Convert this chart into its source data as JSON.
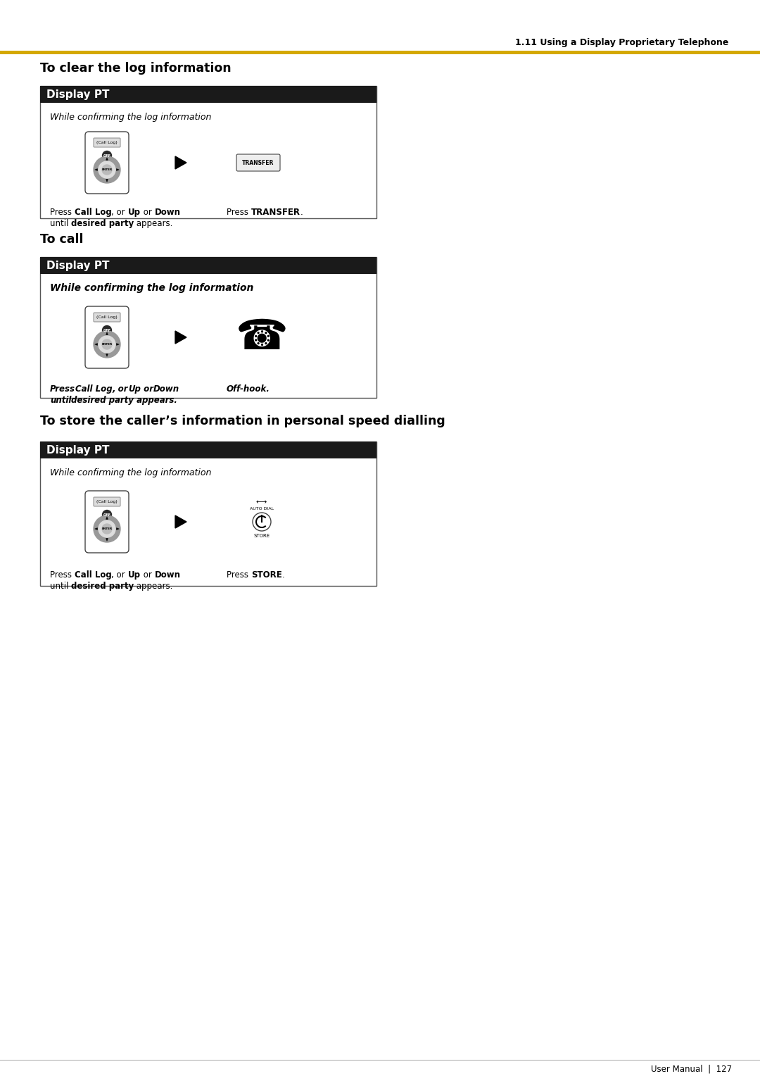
{
  "page_header": "1.11 Using a Display Proprietary Telephone",
  "header_line_color": "#D4A800",
  "background_color": "#FFFFFF",
  "page_number": "User Manual  |  127",
  "box_header_text": "Display PT",
  "box_header_bg": "#1A1A1A",
  "box_header_fg": "#FFFFFF",
  "section1_title": "To clear the log information",
  "section1_italic": "While confirming the log information",
  "section1_italic_bold": false,
  "section1_left_cap1_normal1": "Press ",
  "section1_left_cap1_bold1": "Call Log",
  "section1_left_cap1_normal2": ", or ",
  "section1_left_cap1_bold2": "Up",
  "section1_left_cap1_normal3": " or ",
  "section1_left_cap1_bold3": "Down",
  "section1_left_cap2_normal1": "until ",
  "section1_left_cap2_bold1": "desired party",
  "section1_left_cap2_normal2": " appears.",
  "section1_right_cap_normal1": "Press ",
  "section1_right_cap_bold1": "TRANSFER",
  "section1_right_cap_normal2": ".",
  "section1_right_icon": "TRANSFER",
  "section2_title": "To call",
  "section2_italic": "While confirming the log information",
  "section2_italic_bold": true,
  "section2_left_cap1_normal1": "Press",
  "section2_left_cap1_bold1": "Call Log",
  "section2_left_cap1_normal2": ", or",
  "section2_left_cap1_bold2": "Up",
  "section2_left_cap1_normal3": " or",
  "section2_left_cap1_bold3": "Down",
  "section2_left_cap2_normal1": "until",
  "section2_left_cap2_bold1": "desired party",
  "section2_left_cap2_normal2": " appears.",
  "section2_right_cap_bold1": "Off-hook.",
  "section2_right_icon": "PHONE",
  "section3_title": "To store the caller’s information in personal speed dialling",
  "section3_italic": "While confirming the log information",
  "section3_italic_bold": false,
  "section3_left_cap1_normal1": "Press ",
  "section3_left_cap1_bold1": "Call Log",
  "section3_left_cap1_normal2": ", or ",
  "section3_left_cap1_bold2": "Up",
  "section3_left_cap1_normal3": " or ",
  "section3_left_cap1_bold3": "Down",
  "section3_left_cap2_normal1": "until ",
  "section3_left_cap2_bold1": "desired party",
  "section3_left_cap2_normal2": " appears.",
  "section3_right_cap_normal1": "Press ",
  "section3_right_cap_bold1": "STORE",
  "section3_right_cap_normal2": ".",
  "section3_right_icon": "STORE"
}
